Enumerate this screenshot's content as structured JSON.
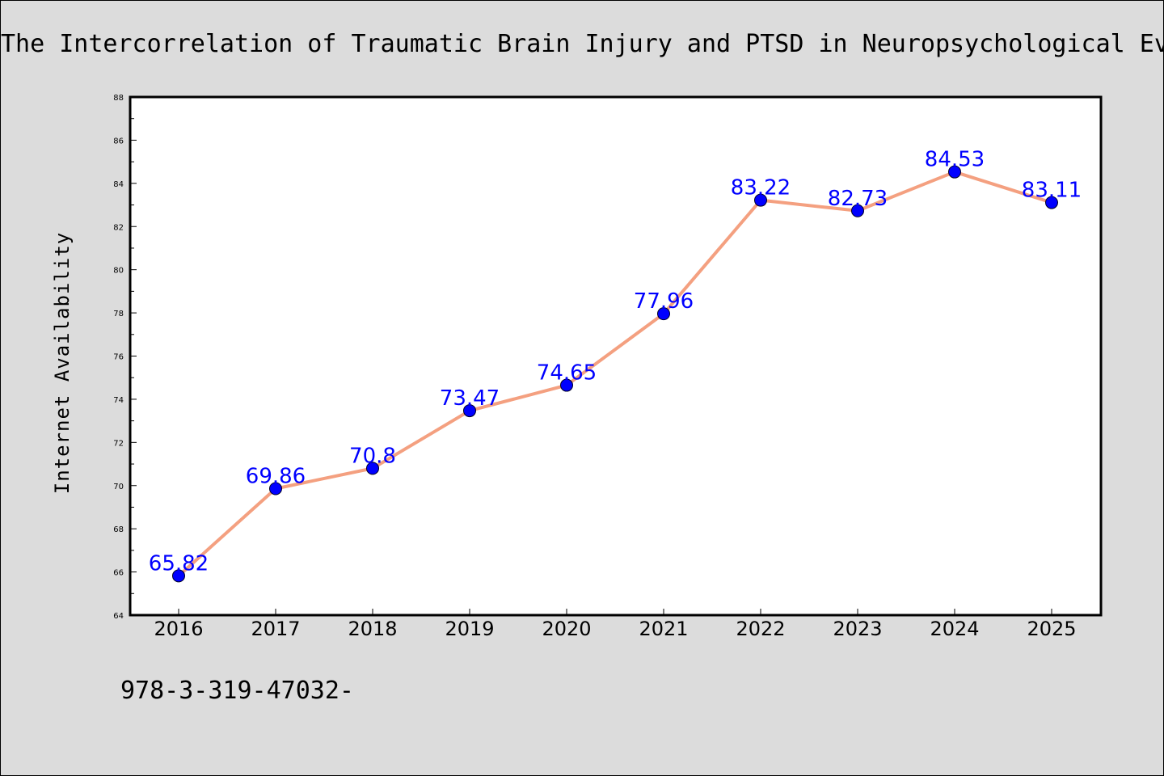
{
  "chart_data": {
    "type": "line",
    "title": "The Intercorrelation of Traumatic Brain Injury and PTSD in Neuropsychological Ev",
    "xlabel": "",
    "ylabel": "Internet Availability",
    "categories": [
      "2016",
      "2017",
      "2018",
      "2019",
      "2020",
      "2021",
      "2022",
      "2023",
      "2024",
      "2025"
    ],
    "series": [
      {
        "values": [
          65.82,
          69.86,
          70.8,
          73.47,
          74.65,
          77.96,
          83.22,
          82.73,
          84.53,
          83.11
        ],
        "labels": [
          "65.82",
          "69.86",
          "70.8",
          "73.47",
          "74.65",
          "77.96",
          "83.22",
          "82.73",
          "84.53",
          "83.11"
        ],
        "line_color": "#f4a080",
        "marker_color": "#0000ff"
      }
    ],
    "ylim": [
      64,
      88
    ],
    "yticks": [
      "64",
      "66",
      "68",
      "70",
      "72",
      "74",
      "76",
      "78",
      "80",
      "82",
      "84",
      "86",
      "88"
    ],
    "grid": false,
    "legend": "none"
  },
  "footer_text": "978-3-319-47032-"
}
